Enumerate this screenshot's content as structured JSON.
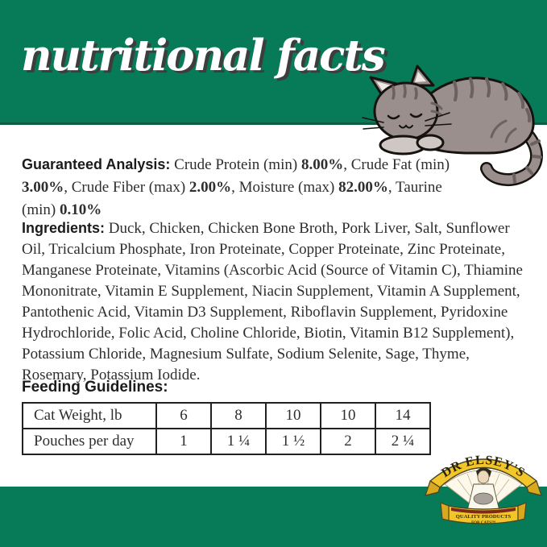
{
  "header": {
    "title": "nutritional facts"
  },
  "cat_illustration": "sleeping-gray-tabby-cat",
  "guaranteed_analysis": {
    "label": "Guaranteed Analysis:",
    "segments": [
      {
        "text": "Crude Protein (min) ",
        "bold": false
      },
      {
        "text": "8.00%",
        "bold": true
      },
      {
        "text": ", Crude Fat (min) ",
        "bold": false
      },
      {
        "text": "3.00%",
        "bold": true
      },
      {
        "text": ", Crude Fiber (max) ",
        "bold": false
      },
      {
        "text": "2.00%",
        "bold": true
      },
      {
        "text": ", Moisture (max) ",
        "bold": false
      },
      {
        "text": "82.00%",
        "bold": true
      },
      {
        "text": ", Taurine (min) ",
        "bold": false
      },
      {
        "text": "0.10%",
        "bold": true
      }
    ]
  },
  "ingredients": {
    "label": "Ingredients:",
    "text": "Duck, Chicken, Chicken Bone Broth, Pork Liver, Salt, Sunflower Oil, Tricalcium Phosphate, Iron Proteinate, Copper Proteinate, Zinc Proteinate, Manganese Proteinate, Vitamins (Ascorbic Acid (Source of Vitamin C), Thiamine Mononitrate, Vitamin E Supplement, Niacin Supplement, Vitamin A Supplement, Pantothenic Acid, Vitamin D3 Supplement, Riboflavin Supplement, Pyridoxine Hydrochloride, Folic Acid, Choline Chloride, Biotin, Vitamin B12 Supplement), Potassium Chloride, Magnesium Sulfate, Sodium Selenite, Sage, Thyme, Rosemary, Potassium Iodide."
  },
  "feeding": {
    "heading": "Feeding Guidelines:",
    "rows": [
      {
        "label": "Cat Weight, lb",
        "values": [
          "6",
          "8",
          "10",
          "10",
          "14"
        ]
      },
      {
        "label": "Pouches per day",
        "values": [
          "1",
          "1 ¼",
          "1 ½",
          "2",
          "2 ¼"
        ]
      }
    ]
  },
  "logo": {
    "brand": "DR ELSEY'S",
    "tagline_line1": "QUALITY PRODUCTS",
    "tagline_line2": "FOR CATS™"
  },
  "colors": {
    "band_green": "#077a58",
    "band_green_edge": "#0b5c41",
    "logo_yellow": "#f2c629",
    "cat_gray": "#9a8f8c",
    "cat_stripe": "#6b615e"
  }
}
